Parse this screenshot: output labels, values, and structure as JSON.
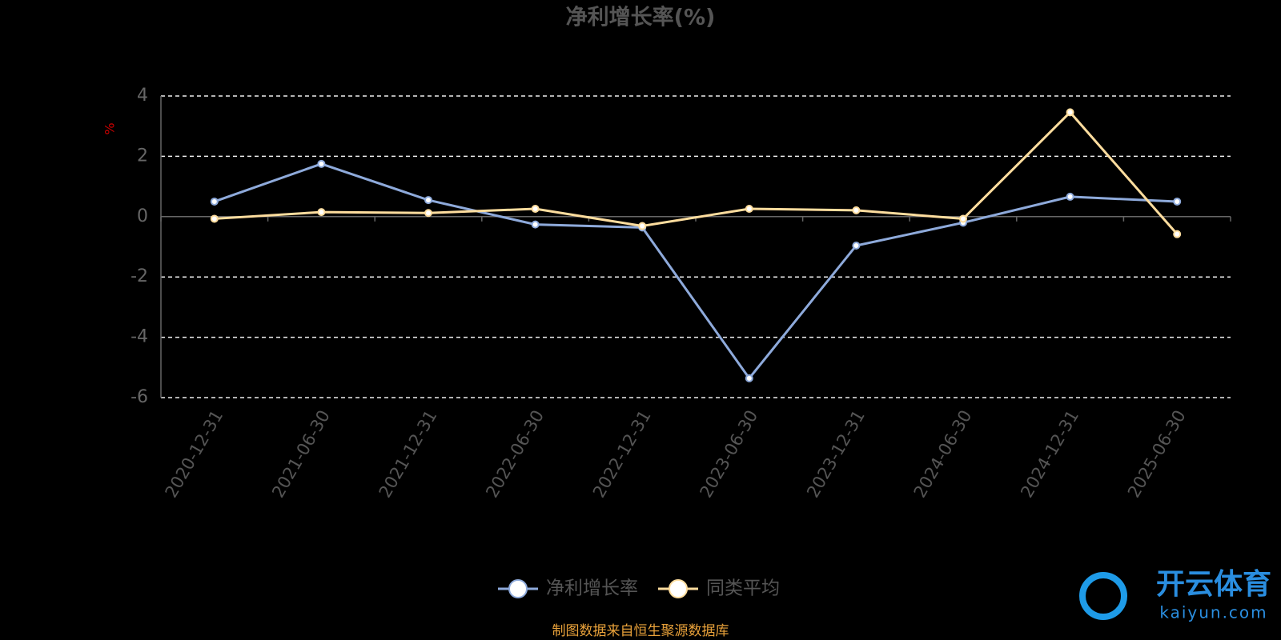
{
  "chart_data": {
    "type": "line",
    "title": "净利增长率(%)",
    "y_label": "%",
    "categories": [
      "2020-12-31",
      "2021-06-30",
      "2021-12-31",
      "2022-06-30",
      "2022-12-31",
      "2023-06-30",
      "2023-12-31",
      "2024-06-30",
      "2024-12-31",
      "2025-06-30"
    ],
    "series": [
      {
        "name": "净利增长率",
        "color": "#8eaadb",
        "values": [
          0.5,
          1.75,
          0.55,
          -0.26,
          -0.36,
          -5.36,
          -0.96,
          -0.2,
          0.66,
          0.5
        ]
      },
      {
        "name": "同类平均",
        "color": "#fedd9e",
        "values": [
          -0.07,
          0.15,
          0.12,
          0.26,
          -0.31,
          0.26,
          0.21,
          -0.07,
          3.46,
          -0.58
        ]
      }
    ],
    "ylim": [
      -6,
      4
    ],
    "yticks": [
      -6,
      -4,
      -2,
      0,
      2,
      4
    ],
    "grid": true,
    "legend": "bottom",
    "source": "制图数据来自恒生聚源数据库",
    "watermark": {
      "name": "开云体育",
      "site": "kaiyun.com"
    }
  }
}
